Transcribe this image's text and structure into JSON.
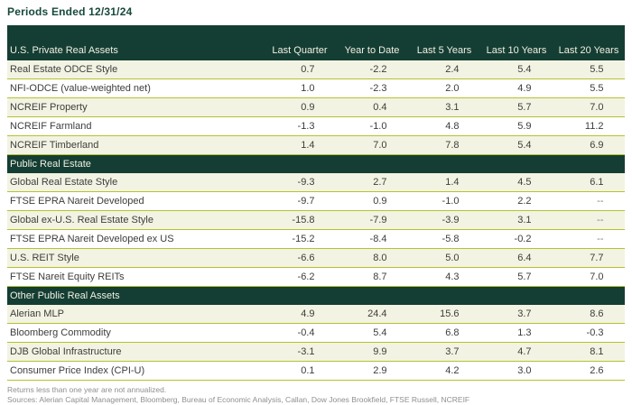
{
  "title": "Periods Ended 12/31/24",
  "table": {
    "first_column_header": "U.S. Private Real Assets",
    "columns": [
      "Last Quarter",
      "Year to Date",
      "Last 5 Years",
      "Last 10 Years",
      "Last 20 Years"
    ],
    "sections": [
      {
        "header": "U.S. Private Real Assets",
        "header_in_top_band": true,
        "rows": [
          {
            "label": "Real Estate ODCE Style",
            "values": [
              "0.7",
              "-2.2",
              "2.4",
              "5.4",
              "5.5"
            ]
          },
          {
            "label": "NFI-ODCE (value-weighted net)",
            "values": [
              "1.0",
              "-2.3",
              "2.0",
              "4.9",
              "5.5"
            ]
          },
          {
            "label": "NCREIF Property",
            "values": [
              "0.9",
              "0.4",
              "3.1",
              "5.7",
              "7.0"
            ]
          },
          {
            "label": "NCREIF Farmland",
            "values": [
              "-1.3",
              "-1.0",
              "4.8",
              "5.9",
              "11.2"
            ]
          },
          {
            "label": "NCREIF Timberland",
            "values": [
              "1.4",
              "7.0",
              "7.8",
              "5.4",
              "6.9"
            ]
          }
        ]
      },
      {
        "header": "Public Real Estate",
        "rows": [
          {
            "label": "Global Real Estate Style",
            "values": [
              "-9.3",
              "2.7",
              "1.4",
              "4.5",
              "6.1"
            ]
          },
          {
            "label": "FTSE EPRA Nareit Developed",
            "values": [
              "-9.7",
              "0.9",
              "-1.0",
              "2.2",
              "--"
            ]
          },
          {
            "label": "Global ex-U.S. Real Estate Style",
            "values": [
              "-15.8",
              "-7.9",
              "-3.9",
              "3.1",
              "--"
            ]
          },
          {
            "label": "FTSE EPRA Nareit Developed ex US",
            "values": [
              "-15.2",
              "-8.4",
              "-5.8",
              "-0.2",
              "--"
            ]
          },
          {
            "label": "U.S. REIT Style",
            "values": [
              "-6.6",
              "8.0",
              "5.0",
              "6.4",
              "7.7"
            ]
          },
          {
            "label": "FTSE Nareit Equity REITs",
            "values": [
              "-6.2",
              "8.7",
              "4.3",
              "5.7",
              "7.0"
            ]
          }
        ]
      },
      {
        "header": "Other Public Real Assets",
        "rows": [
          {
            "label": "Alerian MLP",
            "values": [
              "4.9",
              "24.4",
              "15.6",
              "3.7",
              "8.6"
            ]
          },
          {
            "label": "Bloomberg Commodity",
            "values": [
              "-0.4",
              "5.4",
              "6.8",
              "1.3",
              "-0.3"
            ]
          },
          {
            "label": "DJB Global Infrastructure",
            "values": [
              "-3.1",
              "9.9",
              "3.7",
              "4.7",
              "8.1"
            ]
          },
          {
            "label": "Consumer Price Index (CPI-U)",
            "values": [
              "0.1",
              "2.9",
              "4.2",
              "3.0",
              "2.6"
            ]
          }
        ]
      }
    ]
  },
  "footnotes": [
    "Returns less than one year are not annualized.",
    "Sources: Alerian Capital Management, Bloomberg, Bureau of Economic Analysis, Callan, Dow Jones Brookfield, FTSE Russell, NCREIF"
  ],
  "colors": {
    "band_green": "#143e33",
    "separator_chartreuse": "#b5c22f",
    "row_cream": "#f3f3e3",
    "title_green": "#17493c",
    "body_text": "#3d3d3d",
    "footnote_gray": "#8f8f8f"
  }
}
